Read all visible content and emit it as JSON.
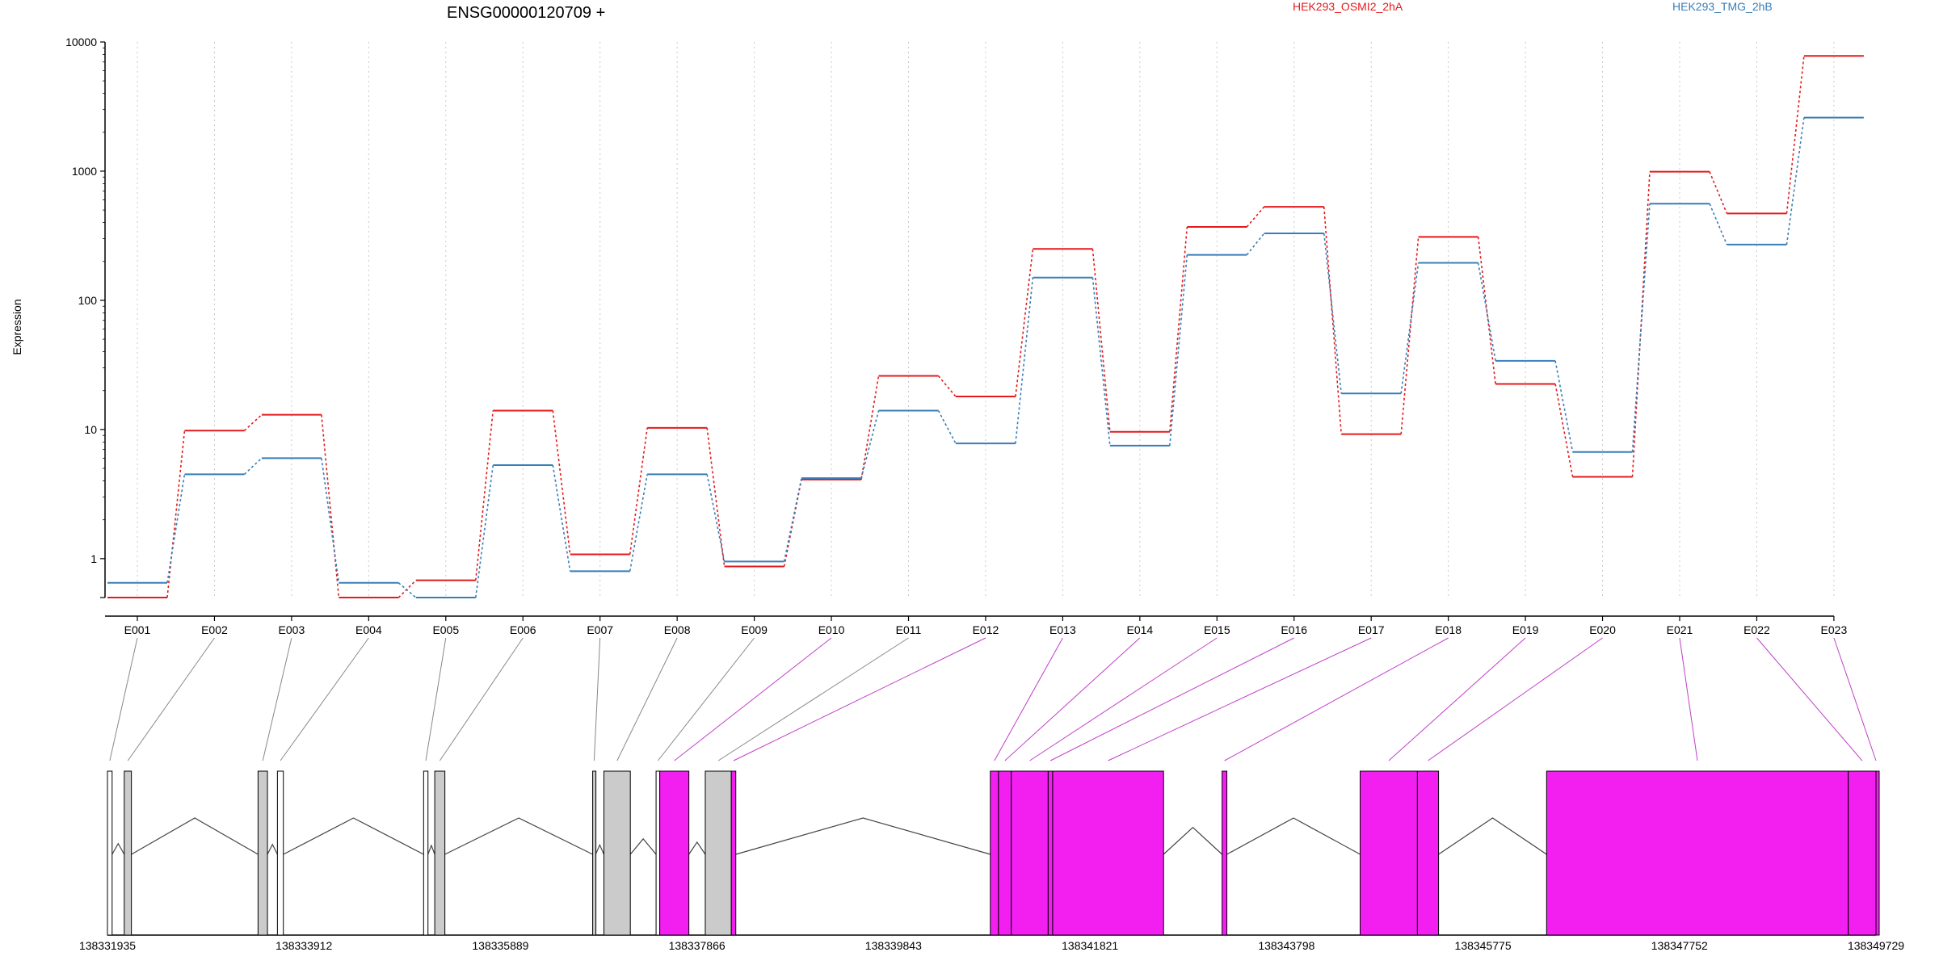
{
  "chart_data": {
    "type": "line",
    "title": "ENSG00000120709 +",
    "ylabel": "Expression",
    "yscale": "log",
    "ylim": [
      0.5,
      10000
    ],
    "yticks": [
      1,
      10,
      100,
      1000,
      10000
    ],
    "grid": "vertical dotted lines at each exon",
    "legend_position": "top",
    "categories": [
      "E001",
      "E002",
      "E003",
      "E004",
      "E005",
      "E006",
      "E007",
      "E008",
      "E009",
      "E010",
      "E011",
      "E012",
      "E013",
      "E014",
      "E015",
      "E016",
      "E017",
      "E018",
      "E019",
      "E020",
      "E021",
      "E022",
      "E023"
    ],
    "series": [
      {
        "name": "HEK293_OSMI2_2hA",
        "color": "#e41a1c",
        "values": [
          0.5,
          9.8,
          13,
          0.5,
          0.68,
          14,
          1.08,
          10.3,
          0.87,
          4.1,
          26,
          18,
          250,
          9.6,
          370,
          530,
          9.2,
          310,
          22.5,
          4.3,
          990,
          470,
          7800
        ]
      },
      {
        "name": "HEK293_TMG_2hB",
        "color": "#377eb8",
        "values": [
          0.65,
          4.5,
          6,
          0.65,
          0.5,
          5.3,
          0.8,
          4.5,
          0.95,
          4.2,
          14,
          7.8,
          150,
          7.5,
          225,
          330,
          19,
          195,
          34,
          6.7,
          560,
          270,
          2600
        ]
      }
    ],
    "gene_model": {
      "axis_ticks": [
        "138331935",
        "138333912",
        "138335889",
        "138337866",
        "138339843",
        "138341821",
        "138343798",
        "138345775",
        "138347752",
        "138349729"
      ],
      "axis_tick_values": [
        138331935,
        138333912,
        138335889,
        138337866,
        138339843,
        138341821,
        138343798,
        138345775,
        138347752,
        138349729
      ],
      "genomic_range": [
        138331935,
        138349729
      ],
      "highlight_color": "#f21ff0",
      "exons": [
        {
          "id": "E001",
          "start": 138331935,
          "end": 138331982,
          "style": "white"
        },
        {
          "id": "E002",
          "start": 138332104,
          "end": 138332176,
          "style": "gray"
        },
        {
          "id": "E003",
          "start": 138333450,
          "end": 138333545,
          "style": "gray"
        },
        {
          "id": "E004",
          "start": 138333645,
          "end": 138333705,
          "style": "white"
        },
        {
          "id": "E005",
          "start": 138335116,
          "end": 138335160,
          "style": "white"
        },
        {
          "id": "E006",
          "start": 138335228,
          "end": 138335330,
          "style": "gray"
        },
        {
          "id": "E007",
          "start": 138336817,
          "end": 138336847,
          "style": "gray"
        },
        {
          "id": "E008",
          "start": 138336930,
          "end": 138337196,
          "style": "gray"
        },
        {
          "id": "E009",
          "start": 138337455,
          "end": 138337492,
          "style": "white"
        },
        {
          "id": "E010",
          "start": 138337492,
          "end": 138337785,
          "style": "magenta"
        },
        {
          "id": "E011",
          "start": 138337950,
          "end": 138338212,
          "style": "gray"
        },
        {
          "id": "E012",
          "start": 138338212,
          "end": 138338257,
          "style": "magenta"
        },
        {
          "id": "E013",
          "start": 138340818,
          "end": 138340900,
          "style": "magenta"
        },
        {
          "id": "E014",
          "start": 138340900,
          "end": 138341029,
          "style": "magenta"
        },
        {
          "id": "E015",
          "start": 138341029,
          "end": 138341400,
          "style": "magenta"
        },
        {
          "id": "E016",
          "start": 138341400,
          "end": 138341445,
          "style": "magenta"
        },
        {
          "id": "E017",
          "start": 138341445,
          "end": 138342561,
          "style": "magenta"
        },
        {
          "id": "E018",
          "start": 138343150,
          "end": 138343198,
          "style": "magenta"
        },
        {
          "id": "E019",
          "start": 138344539,
          "end": 138345115,
          "style": "magenta"
        },
        {
          "id": "E020",
          "start": 138345115,
          "end": 138345328,
          "style": "magenta"
        },
        {
          "id": "E021",
          "start": 138346415,
          "end": 138349450,
          "style": "magenta"
        },
        {
          "id": "E022",
          "start": 138349450,
          "end": 138349729,
          "style": "magenta"
        },
        {
          "id": "E023",
          "start": 138349729,
          "end": 138349729,
          "style": "magenta"
        }
      ]
    }
  }
}
